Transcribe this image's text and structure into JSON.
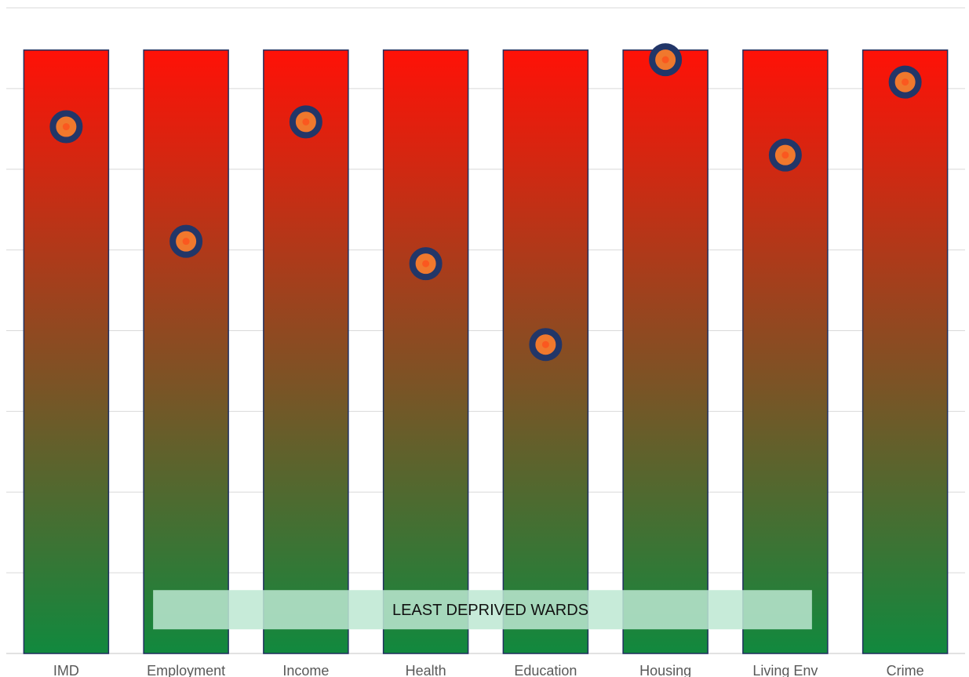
{
  "chart_data": {
    "type": "bar",
    "categories": [
      "IMD",
      "Employment",
      "Income",
      "Health",
      "Education",
      "Housing",
      "Living Env",
      "Crime"
    ],
    "bar_values": [
      1,
      1,
      1,
      1,
      1,
      1,
      1,
      1
    ],
    "series": [
      {
        "values": [
          0.873,
          0.683,
          0.881,
          0.646,
          0.512,
          0.984,
          0.826,
          0.947
        ]
      }
    ],
    "ylim": [
      0,
      1.07
    ],
    "grid": true,
    "legend": "none",
    "annotations": [
      {
        "text": "LEAST DEPRIVED WARDS",
        "from_category": "Employment",
        "to_category": "Living Env",
        "y_range": [
          0.04,
          0.105
        ]
      }
    ],
    "colors": {
      "bar_top": "#ff1107",
      "bar_bottom": "#11893e",
      "bar_outline": "#1f2f5f",
      "marker_ring": "#223668",
      "marker_center": "#f0782d",
      "band_fill": "#bde8d2",
      "band_label": "#111111",
      "grid": "#d9d9d9",
      "tick_label": "#595959"
    }
  }
}
